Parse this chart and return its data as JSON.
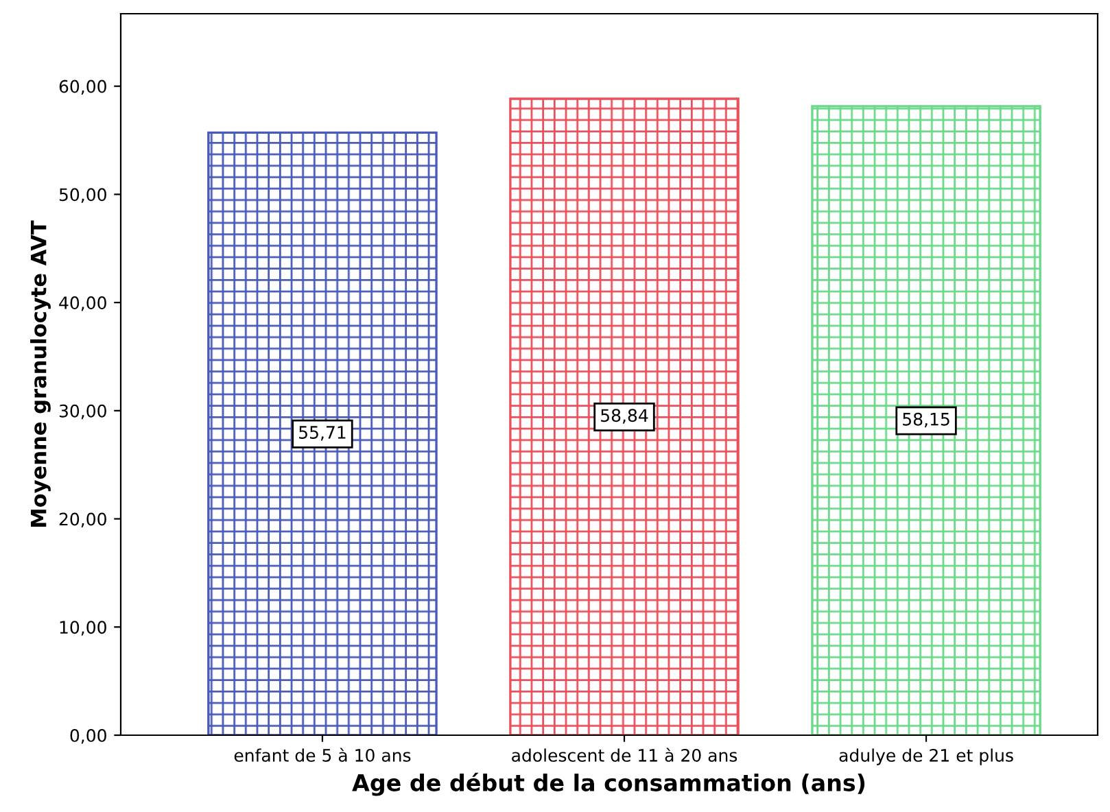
{
  "chart_data": {
    "type": "bar",
    "xlabel": "Age de début de la consammation (ans)",
    "ylabel": "Moyenne granulocyte AVT",
    "categories": [
      "enfant de 5 à 10 ans",
      "adolescent de 11 à 20 ans",
      "adulye de 21 et plus"
    ],
    "values": [
      55.71,
      58.84,
      58.15
    ],
    "value_labels": [
      "55,71",
      "58,84",
      "58,15"
    ],
    "colors": [
      "#4a5bb5",
      "#e8505c",
      "#6cd88a"
    ],
    "ylim": [
      0,
      66.7
    ],
    "yticks": [
      {
        "value": 0,
        "label": "0,00"
      },
      {
        "value": 10,
        "label": "10,00"
      },
      {
        "value": 20,
        "label": "20,00"
      },
      {
        "value": 30,
        "label": "30,00"
      },
      {
        "value": 40,
        "label": "40,00"
      },
      {
        "value": 50,
        "label": "50,00"
      },
      {
        "value": 60,
        "label": "60,00"
      }
    ],
    "grid": false,
    "legend": false
  }
}
